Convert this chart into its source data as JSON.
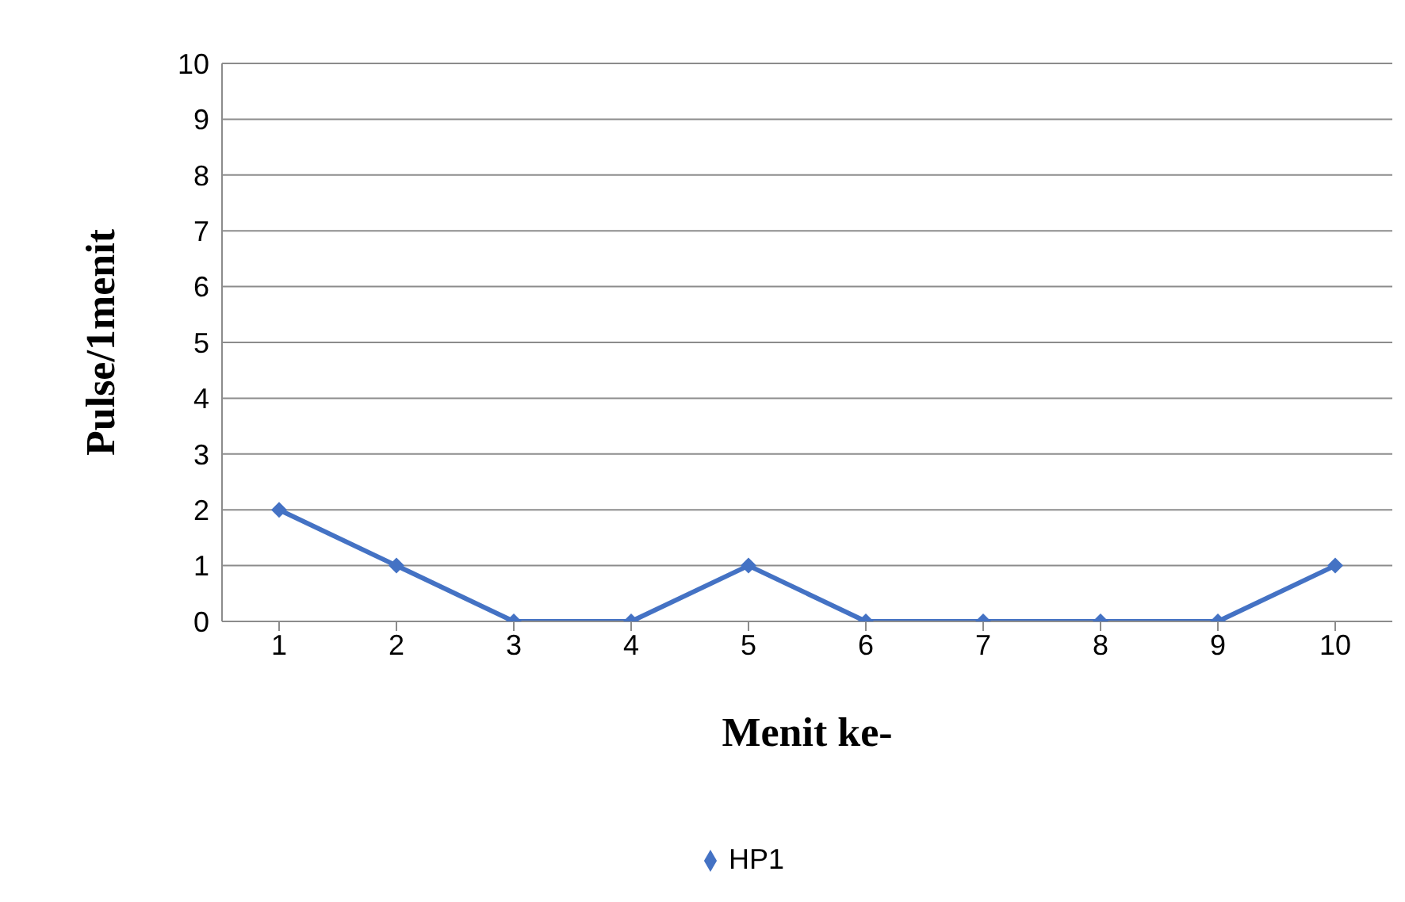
{
  "chart_data": {
    "type": "line",
    "xlabel": "Menit ke-",
    "ylabel": "Pulse/1menit",
    "categories": [
      "1",
      "2",
      "3",
      "4",
      "5",
      "6",
      "7",
      "8",
      "9",
      "10"
    ],
    "series": [
      {
        "name": "HP1",
        "color": "#4472c4",
        "values": [
          2,
          1,
          0,
          0,
          1,
          0,
          0,
          0,
          0,
          1
        ]
      }
    ],
    "ylim": [
      0,
      10
    ],
    "yticks": [
      0,
      1,
      2,
      3,
      4,
      5,
      6,
      7,
      8,
      9,
      10
    ],
    "grid": "y",
    "legend": "bottom",
    "marker": "diamond",
    "line_style": "solid"
  }
}
